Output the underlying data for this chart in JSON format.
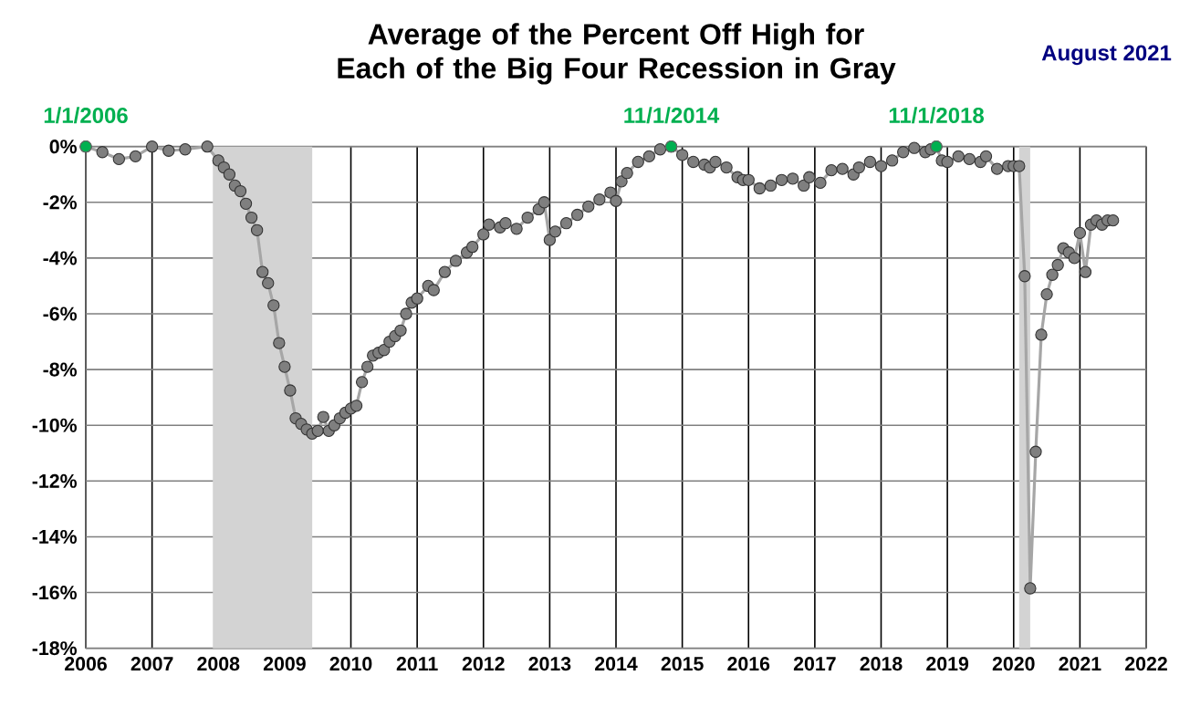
{
  "chart_data": {
    "type": "line",
    "title": "Average of the Percent Off High for Each of the Big Four Recession in Gray",
    "x": [
      "2006-01",
      "2006-04",
      "2006-07",
      "2006-10",
      "2007-01",
      "2007-04",
      "2007-07",
      "2007-11",
      "2008-01",
      "2008-02",
      "2008-03",
      "2008-04",
      "2008-05",
      "2008-06",
      "2008-07",
      "2008-08",
      "2008-09",
      "2008-10",
      "2008-11",
      "2008-12",
      "2009-01",
      "2009-02",
      "2009-03",
      "2009-04",
      "2009-05",
      "2009-06",
      "2009-07",
      "2009-08",
      "2009-09",
      "2009-10",
      "2009-11",
      "2009-12",
      "2010-01",
      "2010-02",
      "2010-03",
      "2010-04",
      "2010-05",
      "2010-06",
      "2010-07",
      "2010-08",
      "2010-09",
      "2010-10",
      "2010-11",
      "2010-12",
      "2011-01",
      "2011-03",
      "2011-04",
      "2011-06",
      "2011-08",
      "2011-10",
      "2011-11",
      "2012-01",
      "2012-02",
      "2012-04",
      "2012-05",
      "2012-07",
      "2012-09",
      "2012-11",
      "2012-12",
      "2013-01",
      "2013-02",
      "2013-04",
      "2013-06",
      "2013-08",
      "2013-10",
      "2013-12",
      "2014-01",
      "2014-02",
      "2014-03",
      "2014-05",
      "2014-07",
      "2014-09",
      "2014-11",
      "2015-01",
      "2015-03",
      "2015-05",
      "2015-06",
      "2015-07",
      "2015-09",
      "2015-11",
      "2015-12",
      "2016-01",
      "2016-03",
      "2016-05",
      "2016-07",
      "2016-09",
      "2016-11",
      "2016-12",
      "2017-02",
      "2017-04",
      "2017-06",
      "2017-08",
      "2017-09",
      "2017-11",
      "2018-01",
      "2018-03",
      "2018-05",
      "2018-07",
      "2018-09",
      "2018-10",
      "2018-11",
      "2018-12",
      "2019-01",
      "2019-03",
      "2019-05",
      "2019-07",
      "2019-08",
      "2019-10",
      "2019-12",
      "2020-01",
      "2020-02",
      "2020-03",
      "2020-04",
      "2020-05",
      "2020-06",
      "2020-07",
      "2020-08",
      "2020-09",
      "2020-10",
      "2020-11",
      "2020-12",
      "2021-01",
      "2021-02",
      "2021-03",
      "2021-04",
      "2021-05",
      "2021-06",
      "2021-07"
    ],
    "series": [
      {
        "color": "#7f7f7f",
        "values": [
          0,
          -0.2,
          -0.45,
          -0.35,
          0,
          -0.15,
          -0.1,
          0,
          -0.5,
          -0.75,
          -1.0,
          -1.4,
          -1.6,
          -2.05,
          -2.55,
          -3.0,
          -4.5,
          -4.9,
          -5.7,
          -7.05,
          -7.9,
          -8.75,
          -9.75,
          -9.95,
          -10.15,
          -10.3,
          -10.2,
          -9.7,
          -10.2,
          -10.0,
          -9.75,
          -9.55,
          -9.4,
          -9.3,
          -8.45,
          -7.9,
          -7.5,
          -7.4,
          -7.3,
          -7.0,
          -6.8,
          -6.6,
          -6.0,
          -5.6,
          -5.45,
          -5.0,
          -5.15,
          -4.5,
          -4.1,
          -3.8,
          -3.6,
          -3.15,
          -2.8,
          -2.9,
          -2.75,
          -2.95,
          -2.55,
          -2.25,
          -2.0,
          -3.35,
          -3.05,
          -2.75,
          -2.45,
          -2.15,
          -1.9,
          -1.65,
          -1.95,
          -1.25,
          -0.95,
          -0.55,
          -0.35,
          -0.1,
          0,
          -0.3,
          -0.55,
          -0.65,
          -0.75,
          -0.55,
          -0.75,
          -1.1,
          -1.2,
          -1.2,
          -1.5,
          -1.4,
          -1.2,
          -1.15,
          -1.4,
          -1.1,
          -1.3,
          -0.85,
          -0.8,
          -1.0,
          -0.75,
          -0.55,
          -0.7,
          -0.5,
          -0.2,
          -0.05,
          -0.2,
          -0.1,
          0,
          -0.5,
          -0.55,
          -0.35,
          -0.45,
          -0.55,
          -0.35,
          -0.8,
          -0.7,
          -0.7,
          -0.7,
          -4.65,
          -15.85,
          -10.95,
          -6.75,
          -5.3,
          -4.6,
          -4.25,
          -3.65,
          -3.8,
          -4.0,
          -3.1,
          -4.5,
          -2.8,
          -2.65,
          -2.8,
          -2.65,
          -2.65
        ]
      }
    ],
    "xlim": [
      "2006",
      "2022"
    ],
    "xticks": [
      "2006",
      "2007",
      "2008",
      "2009",
      "2010",
      "2011",
      "2012",
      "2013",
      "2014",
      "2015",
      "2016",
      "2017",
      "2018",
      "2019",
      "2020",
      "2021",
      "2022"
    ],
    "ylim": [
      -18,
      0
    ],
    "yticks": [
      {
        "value": -18,
        "label": "-18%"
      },
      {
        "value": -16,
        "label": "-16%"
      },
      {
        "value": -14,
        "label": "-14%"
      },
      {
        "value": -12,
        "label": "-12%"
      },
      {
        "value": -10,
        "label": "-10%"
      },
      {
        "value": -8,
        "label": "-8%"
      },
      {
        "value": -6,
        "label": "-6%"
      },
      {
        "value": -4,
        "label": "-4%"
      },
      {
        "value": -2,
        "label": "-2%"
      },
      {
        "value": 0,
        "label": "0%"
      }
    ],
    "bands": [
      {
        "axis": "x",
        "from": "2007-12",
        "to": "2009-06",
        "color": "#d3d3d3"
      },
      {
        "axis": "x",
        "from": "2020-02",
        "to": "2020-04",
        "color": "#d3d3d3"
      }
    ],
    "annotations": [
      {
        "text": "1/1/2006",
        "x": "2006-01",
        "y": 0
      },
      {
        "text": "11/1/2014",
        "x": "2014-11",
        "y": 0
      },
      {
        "text": "11/1/2018",
        "x": "2018-11",
        "y": 0
      },
      "August 2021"
    ],
    "grid": true,
    "marker": "circle",
    "line_style": "solid"
  }
}
